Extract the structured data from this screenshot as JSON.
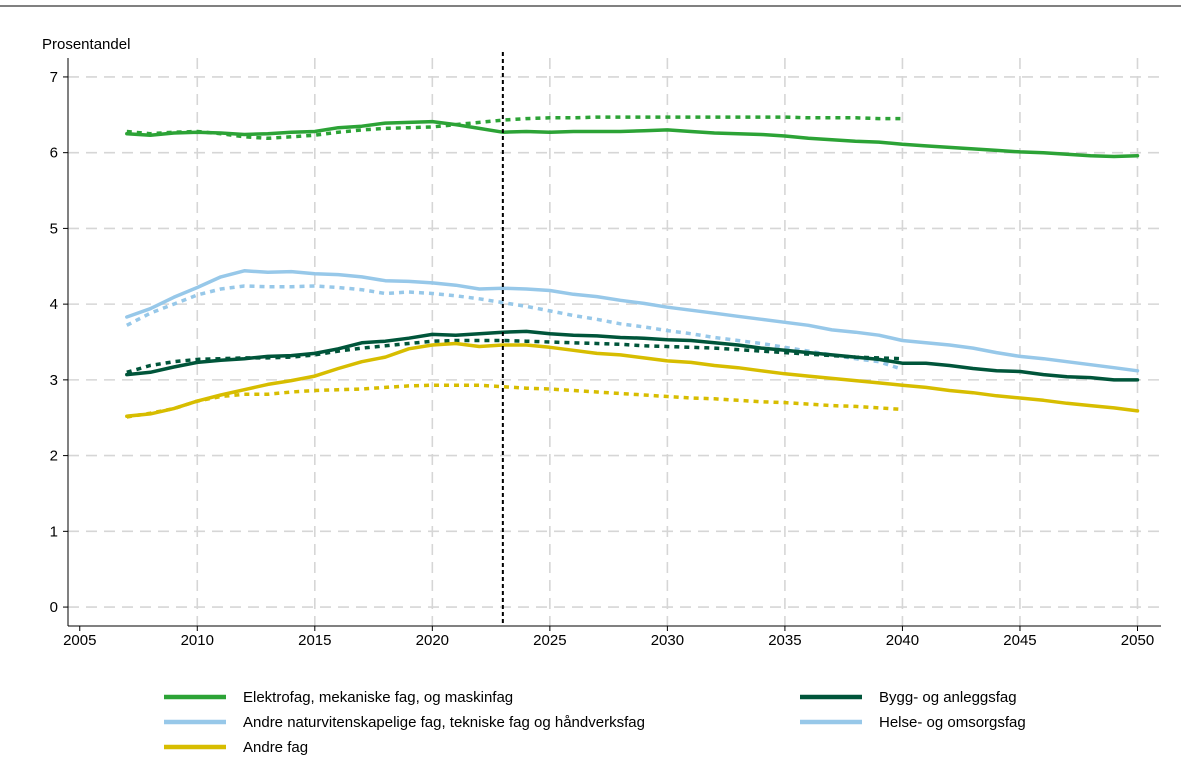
{
  "chart_data": {
    "type": "line",
    "ylabel": "Prosentandel",
    "xlabel": "",
    "xlim": [
      2004.5,
      2051
    ],
    "ylim": [
      -0.25,
      7.25
    ],
    "x_ticks": [
      2005,
      2010,
      2015,
      2020,
      2025,
      2030,
      2035,
      2040,
      2045,
      2050
    ],
    "y_ticks": [
      0,
      1,
      2,
      3,
      4,
      5,
      6,
      7
    ],
    "grid": true,
    "vline_x": 2023,
    "legend_position": "bottom",
    "colors": {
      "green": "#2ca336",
      "light_blue": "#97c8e9",
      "yellow": "#d7bd00",
      "dark_green": "#00553a",
      "vline": "#000000"
    },
    "legend": [
      {
        "label": "Elektrofag, mekaniske fag, og maskinfag",
        "color": "#2ca336"
      },
      {
        "label": "Andre naturvitenskapelige fag, tekniske fag og håndverksfag",
        "color": "#97c8e9"
      },
      {
        "label": "Andre fag",
        "color": "#d7bd00"
      },
      {
        "label": "Bygg- og anleggsfag",
        "color": "#00553a"
      },
      {
        "label": "Helse- og omsorgsfag",
        "color": "#97c8e9"
      }
    ],
    "series": [
      {
        "key": "elektro_solid",
        "dashed": false,
        "color": "#2ca336",
        "x": [
          2007,
          2008,
          2009,
          2010,
          2011,
          2012,
          2013,
          2014,
          2015,
          2016,
          2017,
          2018,
          2019,
          2020,
          2021,
          2022,
          2023,
          2024,
          2025,
          2026,
          2027,
          2028,
          2029,
          2030,
          2031,
          2032,
          2033,
          2034,
          2035,
          2036,
          2037,
          2038,
          2039,
          2040,
          2041,
          2042,
          2043,
          2044,
          2045,
          2046,
          2047,
          2048,
          2049,
          2050
        ],
        "y": [
          6.25,
          6.23,
          6.26,
          6.27,
          6.26,
          6.24,
          6.25,
          6.27,
          6.28,
          6.33,
          6.35,
          6.39,
          6.4,
          6.41,
          6.37,
          6.32,
          6.27,
          6.28,
          6.27,
          6.28,
          6.28,
          6.28,
          6.29,
          6.3,
          6.28,
          6.26,
          6.25,
          6.24,
          6.22,
          6.19,
          6.17,
          6.15,
          6.14,
          6.11,
          6.09,
          6.07,
          6.05,
          6.03,
          6.01,
          6.0,
          5.98,
          5.96,
          5.95,
          5.96
        ]
      },
      {
        "key": "elektro_dotted",
        "dashed": true,
        "color": "#2ca336",
        "x": [
          2007,
          2008,
          2009,
          2010,
          2011,
          2012,
          2013,
          2014,
          2015,
          2016,
          2017,
          2018,
          2019,
          2020,
          2021,
          2022,
          2023,
          2024,
          2025,
          2026,
          2027,
          2028,
          2029,
          2030,
          2031,
          2032,
          2033,
          2034,
          2035,
          2036,
          2037,
          2038,
          2039,
          2040
        ],
        "y": [
          6.28,
          6.25,
          6.27,
          6.28,
          6.25,
          6.21,
          6.19,
          6.21,
          6.23,
          6.27,
          6.3,
          6.32,
          6.33,
          6.34,
          6.37,
          6.4,
          6.43,
          6.45,
          6.46,
          6.46,
          6.47,
          6.47,
          6.47,
          6.47,
          6.47,
          6.47,
          6.47,
          6.47,
          6.47,
          6.46,
          6.46,
          6.46,
          6.45,
          6.45
        ]
      },
      {
        "key": "andre_natur_solid",
        "dashed": false,
        "color": "#97c8e9",
        "x": [
          2007,
          2008,
          2009,
          2010,
          2011,
          2012,
          2013,
          2014,
          2015,
          2016,
          2017,
          2018,
          2019,
          2020,
          2021,
          2022,
          2023,
          2024,
          2025,
          2026,
          2027,
          2028,
          2029,
          2030,
          2031,
          2032,
          2033,
          2034,
          2035,
          2036,
          2037,
          2038,
          2039,
          2040,
          2041,
          2042,
          2043,
          2044,
          2045,
          2046,
          2047,
          2048,
          2049,
          2050
        ],
        "y": [
          3.83,
          3.94,
          4.09,
          4.22,
          4.36,
          4.44,
          4.42,
          4.43,
          4.4,
          4.39,
          4.36,
          4.31,
          4.3,
          4.28,
          4.25,
          4.2,
          4.21,
          4.2,
          4.18,
          4.13,
          4.1,
          4.05,
          4.01,
          3.96,
          3.92,
          3.88,
          3.84,
          3.8,
          3.76,
          3.72,
          3.66,
          3.63,
          3.59,
          3.52,
          3.49,
          3.46,
          3.42,
          3.36,
          3.31,
          3.28,
          3.24,
          3.2,
          3.16,
          3.12
        ]
      },
      {
        "key": "helse_dotted",
        "dashed": true,
        "color": "#97c8e9",
        "x": [
          2007,
          2008,
          2009,
          2010,
          2011,
          2012,
          2013,
          2014,
          2015,
          2016,
          2017,
          2018,
          2019,
          2020,
          2021,
          2022,
          2023,
          2024,
          2025,
          2026,
          2027,
          2028,
          2029,
          2030,
          2031,
          2032,
          2033,
          2034,
          2035,
          2036,
          2037,
          2038,
          2039,
          2040
        ],
        "y": [
          3.72,
          3.88,
          4.0,
          4.12,
          4.2,
          4.24,
          4.23,
          4.23,
          4.24,
          4.22,
          4.19,
          4.14,
          4.16,
          4.14,
          4.11,
          4.07,
          4.02,
          3.97,
          3.91,
          3.85,
          3.8,
          3.74,
          3.7,
          3.65,
          3.61,
          3.56,
          3.52,
          3.48,
          3.43,
          3.38,
          3.33,
          3.28,
          3.24,
          3.14
        ]
      },
      {
        "key": "bygg_solid",
        "dashed": false,
        "color": "#00553a",
        "x": [
          2007,
          2008,
          2009,
          2010,
          2011,
          2012,
          2013,
          2014,
          2015,
          2016,
          2017,
          2018,
          2019,
          2020,
          2021,
          2022,
          2023,
          2024,
          2025,
          2026,
          2027,
          2028,
          2029,
          2030,
          2031,
          2032,
          2033,
          2034,
          2035,
          2036,
          2037,
          2038,
          2039,
          2040,
          2041,
          2042,
          2043,
          2044,
          2045,
          2046,
          2047,
          2048,
          2049,
          2050
        ],
        "y": [
          3.07,
          3.1,
          3.17,
          3.23,
          3.26,
          3.28,
          3.31,
          3.32,
          3.35,
          3.41,
          3.49,
          3.51,
          3.55,
          3.6,
          3.59,
          3.61,
          3.63,
          3.64,
          3.61,
          3.59,
          3.58,
          3.56,
          3.55,
          3.53,
          3.52,
          3.49,
          3.46,
          3.42,
          3.39,
          3.36,
          3.33,
          3.3,
          3.27,
          3.22,
          3.22,
          3.19,
          3.15,
          3.12,
          3.11,
          3.07,
          3.04,
          3.03,
          3.0,
          3.0
        ]
      },
      {
        "key": "bygg_dotted",
        "dashed": true,
        "color": "#00553a",
        "x": [
          2007,
          2008,
          2009,
          2010,
          2011,
          2012,
          2013,
          2014,
          2015,
          2016,
          2017,
          2018,
          2019,
          2020,
          2021,
          2022,
          2023,
          2024,
          2025,
          2026,
          2027,
          2028,
          2029,
          2030,
          2031,
          2032,
          2033,
          2034,
          2035,
          2036,
          2037,
          2038,
          2039,
          2040
        ],
        "y": [
          3.1,
          3.19,
          3.24,
          3.27,
          3.28,
          3.29,
          3.29,
          3.3,
          3.33,
          3.38,
          3.42,
          3.45,
          3.48,
          3.51,
          3.52,
          3.52,
          3.52,
          3.51,
          3.5,
          3.49,
          3.48,
          3.47,
          3.45,
          3.44,
          3.43,
          3.42,
          3.4,
          3.38,
          3.36,
          3.34,
          3.32,
          3.3,
          3.29,
          3.28
        ]
      },
      {
        "key": "andre_fag_solid",
        "dashed": false,
        "color": "#d7bd00",
        "x": [
          2007,
          2008,
          2009,
          2010,
          2011,
          2012,
          2013,
          2014,
          2015,
          2016,
          2017,
          2018,
          2019,
          2020,
          2021,
          2022,
          2023,
          2024,
          2025,
          2026,
          2027,
          2028,
          2029,
          2030,
          2031,
          2032,
          2033,
          2034,
          2035,
          2036,
          2037,
          2038,
          2039,
          2040,
          2041,
          2042,
          2043,
          2044,
          2045,
          2046,
          2047,
          2048,
          2049,
          2050
        ],
        "y": [
          2.52,
          2.55,
          2.62,
          2.72,
          2.8,
          2.87,
          2.94,
          2.99,
          3.05,
          3.15,
          3.24,
          3.3,
          3.41,
          3.46,
          3.48,
          3.44,
          3.46,
          3.46,
          3.43,
          3.39,
          3.35,
          3.33,
          3.29,
          3.25,
          3.23,
          3.19,
          3.16,
          3.12,
          3.08,
          3.05,
          3.02,
          2.99,
          2.96,
          2.93,
          2.9,
          2.86,
          2.83,
          2.79,
          2.76,
          2.73,
          2.69,
          2.66,
          2.63,
          2.59
        ]
      },
      {
        "key": "andre_fag_dotted",
        "dashed": true,
        "color": "#d7bd00",
        "x": [
          2007,
          2008,
          2009,
          2010,
          2011,
          2012,
          2013,
          2014,
          2015,
          2016,
          2017,
          2018,
          2019,
          2020,
          2021,
          2022,
          2023,
          2024,
          2025,
          2026,
          2027,
          2028,
          2029,
          2030,
          2031,
          2032,
          2033,
          2034,
          2035,
          2036,
          2037,
          2038,
          2039,
          2040
        ],
        "y": [
          2.51,
          2.56,
          2.62,
          2.72,
          2.78,
          2.81,
          2.81,
          2.84,
          2.86,
          2.87,
          2.88,
          2.9,
          2.92,
          2.93,
          2.93,
          2.93,
          2.91,
          2.89,
          2.88,
          2.86,
          2.84,
          2.82,
          2.8,
          2.78,
          2.76,
          2.75,
          2.73,
          2.71,
          2.7,
          2.68,
          2.66,
          2.65,
          2.63,
          2.61
        ]
      }
    ]
  }
}
